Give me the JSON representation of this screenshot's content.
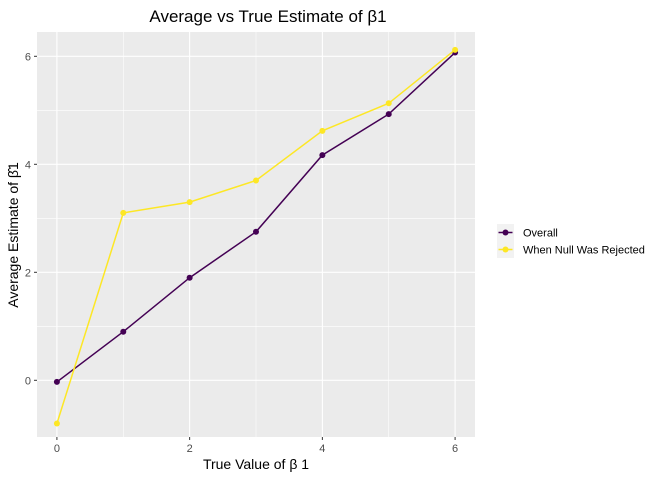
{
  "chart_data": {
    "type": "line",
    "title": "Average vs True Estimate of β1",
    "xlabel": "True Value of β 1",
    "ylabel": "Average Estimate of β̂1",
    "x": [
      0,
      1,
      2,
      3,
      4,
      5,
      6
    ],
    "xlim": [
      -0.3,
      6.3
    ],
    "ylim": [
      -1.05,
      6.45
    ],
    "xticks": [
      0,
      2,
      4,
      6
    ],
    "yticks": [
      0,
      2,
      4,
      6
    ],
    "grid": true,
    "legend_position": "right",
    "series": [
      {
        "name": "Overall",
        "color": "#440154",
        "values": [
          -0.03,
          0.9,
          1.9,
          2.75,
          4.17,
          4.93,
          6.07
        ]
      },
      {
        "name": "When Null Was Rejected",
        "color": "#FDE725",
        "values": [
          -0.8,
          3.1,
          3.3,
          3.7,
          4.62,
          5.13,
          6.12
        ]
      }
    ]
  },
  "style": {
    "panel_background": "#EBEBEB",
    "grid_color": "#FFFFFF",
    "legend_key_background": "#F2F2F2"
  }
}
